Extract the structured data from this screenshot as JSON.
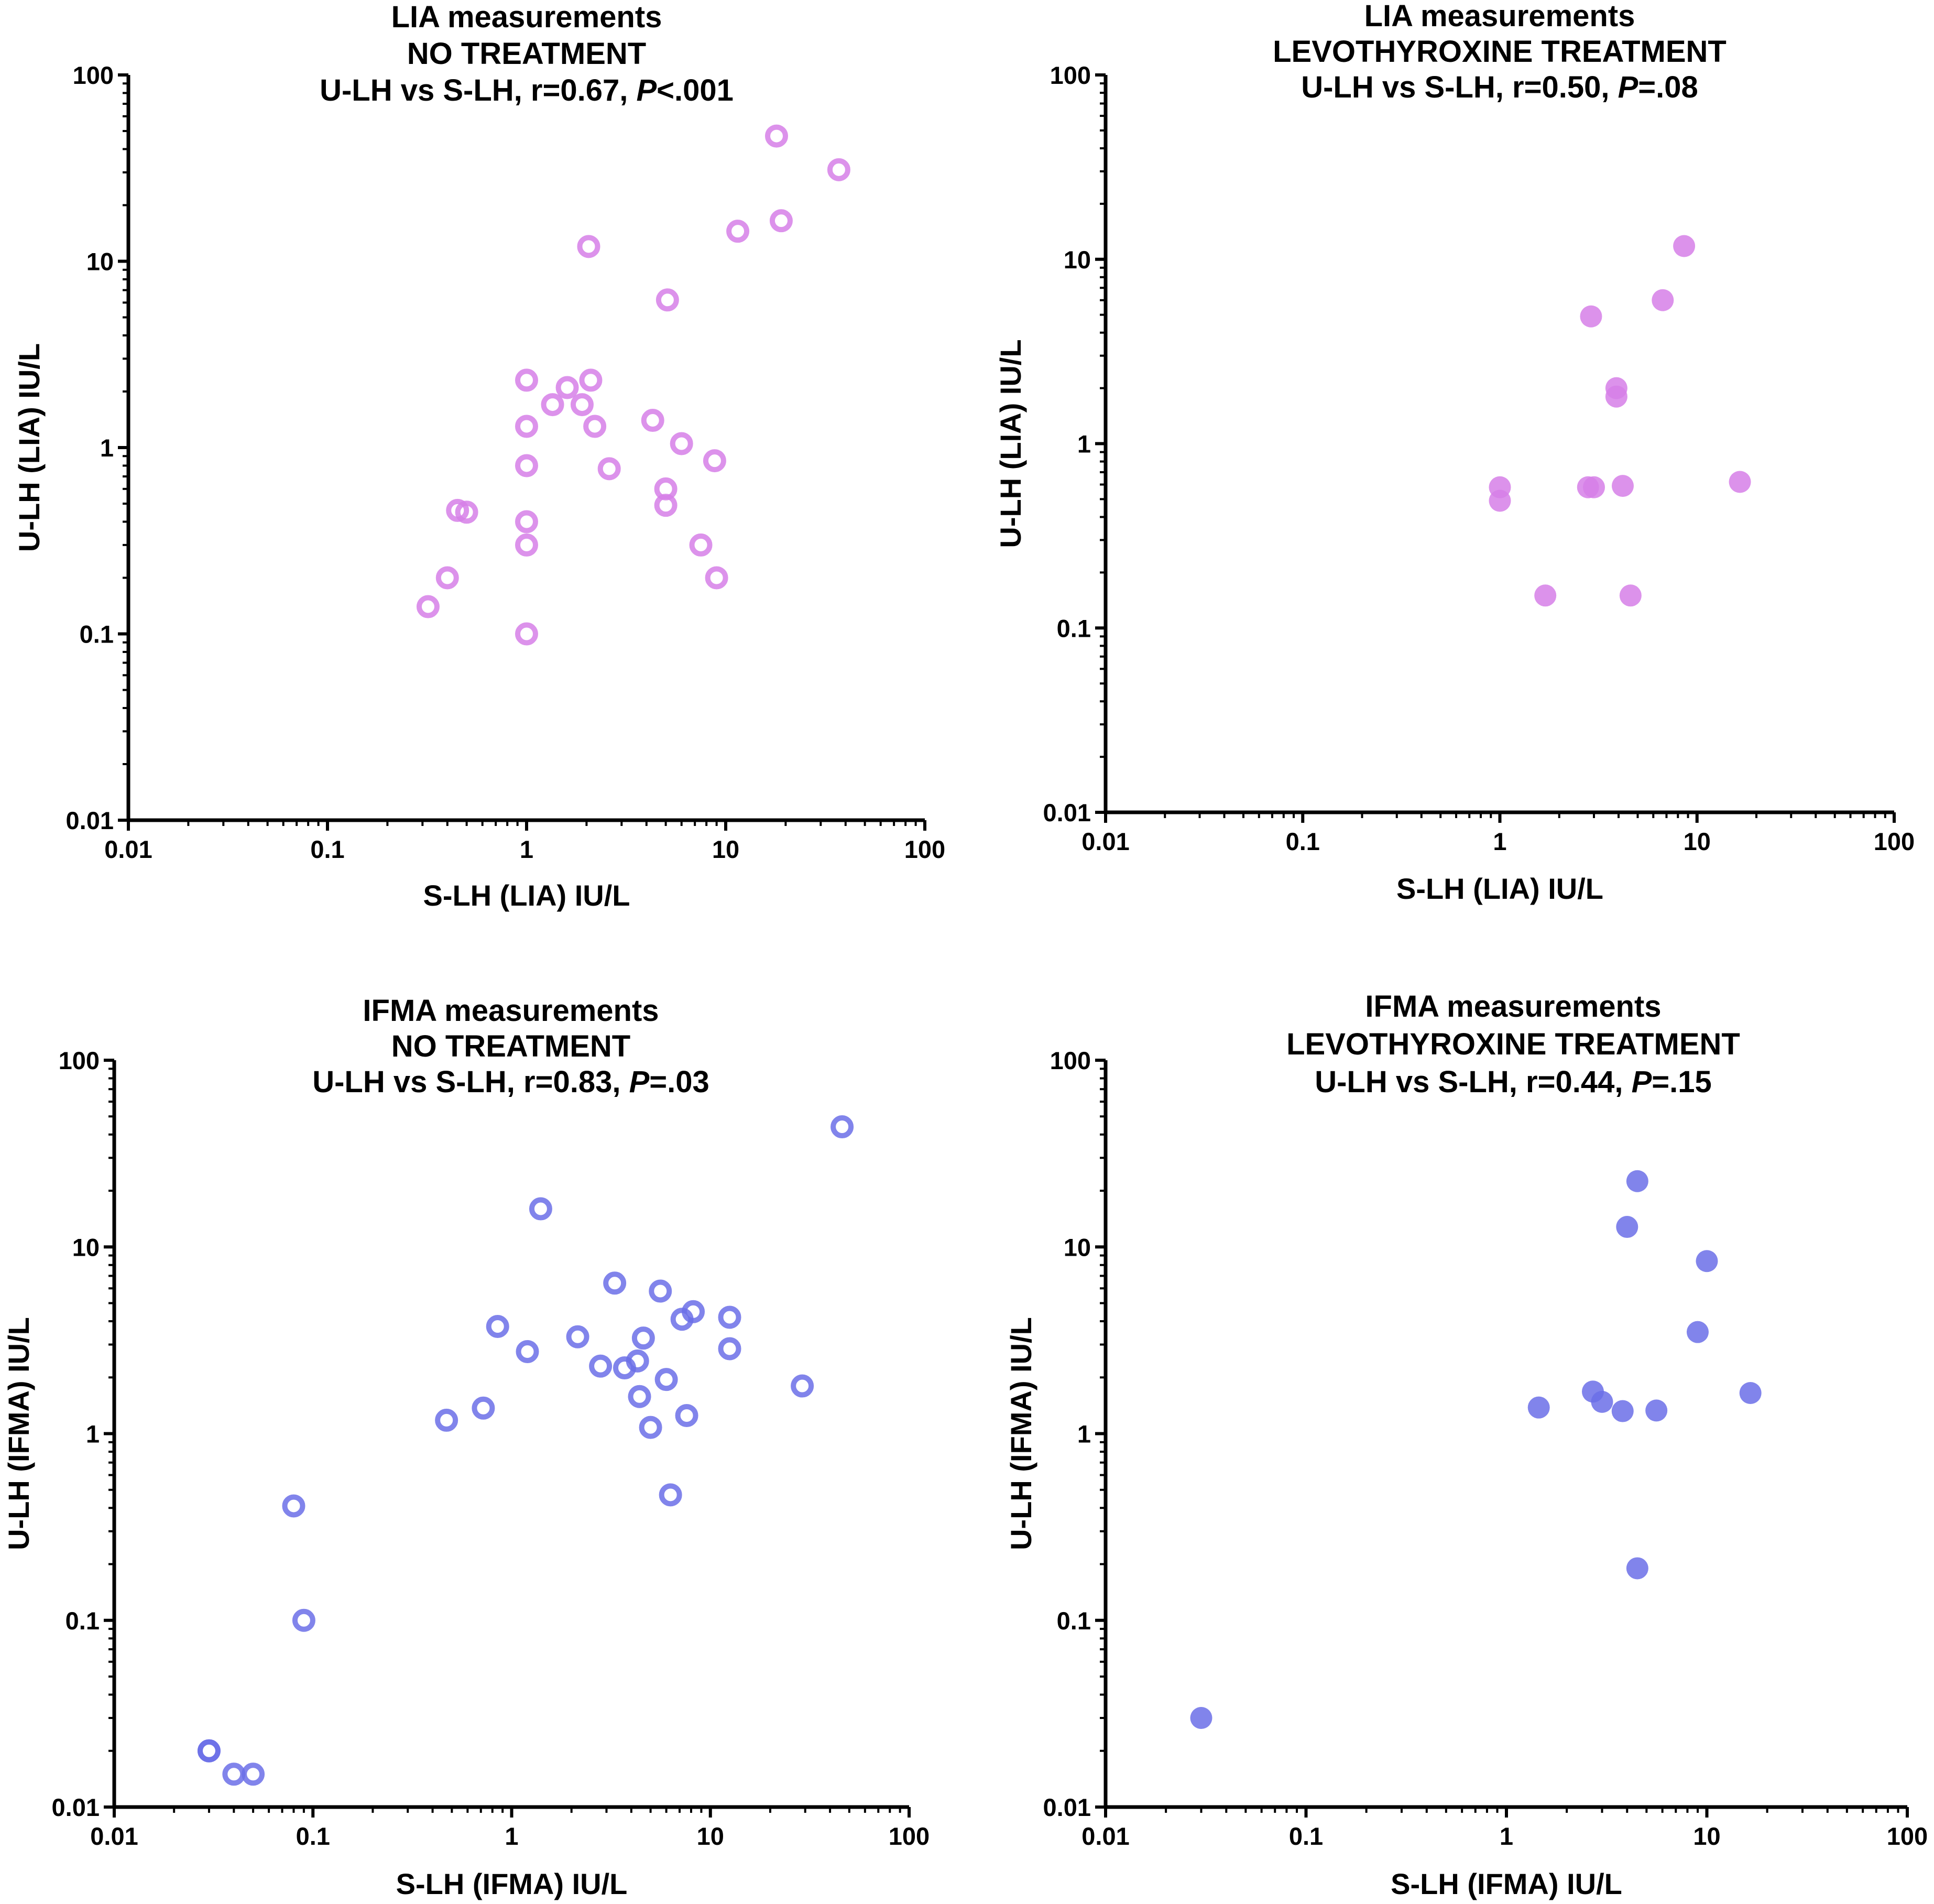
{
  "chart_data": [
    {
      "type": "scatter",
      "title_lines": [
        "LIA measurements",
        "NO TREATMENT"
      ],
      "stat_prefix": "U-LH vs  S-LH, r=0.67, ",
      "stat_p": "P",
      "stat_suffix": "<.001",
      "xlabel": "S-LH (LIA) IU/L",
      "ylabel": "U-LH (LIA) IU/L",
      "xscale": "log",
      "yscale": "log",
      "xlim": [
        0.01,
        100
      ],
      "ylim": [
        0.01,
        100
      ],
      "tick_values": [
        0.01,
        0.1,
        1,
        10,
        100
      ],
      "tick_labels": [
        "0.01",
        "0.1",
        "1",
        "10",
        "100"
      ],
      "marker": "open-circle",
      "color": "#d67fe8",
      "x": [
        0.32,
        0.4,
        0.45,
        0.5,
        1.0,
        1.0,
        1.0,
        1.0,
        1.0,
        1.0,
        1.35,
        1.6,
        1.9,
        2.1,
        2.2,
        2.6,
        2.05,
        4.3,
        5.0,
        5.0,
        6.0,
        7.5,
        8.8,
        9.0,
        5.1,
        11.5,
        18.0,
        19.0,
        37.0
      ],
      "y": [
        0.14,
        0.2,
        0.46,
        0.45,
        0.1,
        0.3,
        0.4,
        0.8,
        1.3,
        2.3,
        1.7,
        2.1,
        1.7,
        2.3,
        1.3,
        0.77,
        12.0,
        1.4,
        0.6,
        0.49,
        1.05,
        0.3,
        0.85,
        0.2,
        6.2,
        14.5,
        47.0,
        16.5,
        31.0
      ]
    },
    {
      "type": "scatter",
      "title_lines": [
        "LIA measurements",
        "LEVOTHYROXINE TREATMENT"
      ],
      "stat_prefix": "U-LH vs  S-LH, r=0.50, ",
      "stat_p": "P",
      "stat_suffix": "=.08",
      "xlabel": "S-LH (LIA) IU/L",
      "ylabel": "U-LH (LIA) IU/L",
      "xscale": "log",
      "yscale": "log",
      "xlim": [
        0.01,
        100
      ],
      "ylim": [
        0.01,
        100
      ],
      "tick_values": [
        0.01,
        0.1,
        1,
        10,
        100
      ],
      "tick_labels": [
        "0.01",
        "0.1",
        "1",
        "10",
        "100"
      ],
      "marker": "filled-circle",
      "color": "#d67fe8",
      "x": [
        1.0,
        1.0,
        1.7,
        2.8,
        2.9,
        3.0,
        3.9,
        3.9,
        4.2,
        4.6,
        6.7,
        8.6,
        16.5
      ],
      "y": [
        0.58,
        0.49,
        0.15,
        0.58,
        4.9,
        0.58,
        2.0,
        1.8,
        0.59,
        0.15,
        6.0,
        11.8,
        0.62
      ]
    },
    {
      "type": "scatter",
      "title_lines": [
        "IFMA measurements",
        "NO TREATMENT"
      ],
      "stat_prefix": "U-LH vs  S-LH, r=0.83, ",
      "stat_p": "P",
      "stat_suffix": "=.03",
      "xlabel": "S-LH (IFMA) IU/L",
      "ylabel": "U-LH (IFMA) IU/L",
      "xscale": "log",
      "yscale": "log",
      "xlim": [
        0.01,
        100
      ],
      "ylim": [
        0.01,
        100
      ],
      "tick_values": [
        0.01,
        0.1,
        1,
        10,
        100
      ],
      "tick_labels": [
        "0.01",
        "0.1",
        "1",
        "10",
        "100"
      ],
      "marker": "open-circle",
      "color": "#6b6ee8",
      "x": [
        0.03,
        0.03,
        0.04,
        0.05,
        0.08,
        0.09,
        0.47,
        0.72,
        0.85,
        1.2,
        1.4,
        2.15,
        2.8,
        3.3,
        3.7,
        4.3,
        4.4,
        4.6,
        5.0,
        5.6,
        6.0,
        6.3,
        7.2,
        7.6,
        8.2,
        12.5,
        12.5,
        29.0,
        46.0
      ],
      "y": [
        0.02,
        0.02,
        0.015,
        0.015,
        0.41,
        0.1,
        1.18,
        1.37,
        3.75,
        2.75,
        16.0,
        3.3,
        2.3,
        6.4,
        2.25,
        2.45,
        1.58,
        3.25,
        1.08,
        5.8,
        1.95,
        0.47,
        4.1,
        1.25,
        4.5,
        4.2,
        2.85,
        1.8,
        44.0
      ]
    },
    {
      "type": "scatter",
      "title_lines": [
        "IFMA measurements",
        "LEVOTHYROXINE TREATMENT"
      ],
      "stat_prefix": "U-LH vs  S-LH, r=0.44, ",
      "stat_p": "P",
      "stat_suffix": "=.15",
      "xlabel": "S-LH (IFMA) IU/L",
      "ylabel": "U-LH (IFMA) IU/L",
      "xscale": "log",
      "yscale": "log",
      "xlim": [
        0.01,
        100
      ],
      "ylim": [
        0.01,
        100
      ],
      "tick_values": [
        0.01,
        0.1,
        1,
        10,
        100
      ],
      "tick_labels": [
        "0.01",
        "0.1",
        "1",
        "10",
        "100"
      ],
      "marker": "filled-circle",
      "color": "#6b6ee8",
      "x": [
        0.03,
        1.45,
        2.7,
        3.0,
        3.8,
        4.0,
        4.5,
        4.5,
        5.6,
        9.0,
        10.0,
        16.5
      ],
      "y": [
        0.03,
        1.38,
        1.68,
        1.48,
        1.32,
        12.8,
        0.19,
        22.5,
        1.33,
        3.5,
        8.4,
        1.65
      ]
    }
  ]
}
